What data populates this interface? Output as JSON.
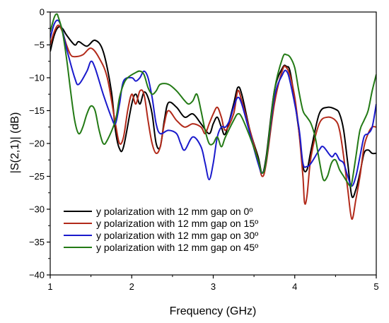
{
  "chart_data": {
    "type": "line",
    "title": "",
    "xlabel": "Frequency (GHz)",
    "ylabel": "|S(2,1)| (dB)",
    "xlim": [
      1,
      5
    ],
    "ylim": [
      -40,
      0
    ],
    "xticks": [
      1,
      2,
      3,
      4,
      5
    ],
    "yticks": [
      0,
      -5,
      -10,
      -15,
      -20,
      -25,
      -30,
      -35,
      -40
    ],
    "grid": false,
    "legend_position": "bottom-left",
    "series": [
      {
        "name": "y polarization with 12 mm gap on 0º",
        "color": "#000000",
        "points": [
          [
            1.0,
            -6.0
          ],
          [
            1.05,
            -3.5
          ],
          [
            1.1,
            -2.3
          ],
          [
            1.15,
            -2.5
          ],
          [
            1.2,
            -3.5
          ],
          [
            1.3,
            -5.0
          ],
          [
            1.35,
            -4.5
          ],
          [
            1.45,
            -5.2
          ],
          [
            1.55,
            -4.3
          ],
          [
            1.65,
            -6.0
          ],
          [
            1.75,
            -12.0
          ],
          [
            1.8,
            -18.0
          ],
          [
            1.85,
            -20.8
          ],
          [
            1.9,
            -20.5
          ],
          [
            2.0,
            -14.0
          ],
          [
            2.05,
            -12.5
          ],
          [
            2.1,
            -14.0
          ],
          [
            2.15,
            -12.2
          ],
          [
            2.2,
            -13.0
          ],
          [
            2.25,
            -15.5
          ],
          [
            2.3,
            -20.0
          ],
          [
            2.35,
            -20.5
          ],
          [
            2.4,
            -16.5
          ],
          [
            2.45,
            -13.8
          ],
          [
            2.55,
            -14.5
          ],
          [
            2.65,
            -16.0
          ],
          [
            2.75,
            -15.5
          ],
          [
            2.85,
            -17.0
          ],
          [
            2.95,
            -18.5
          ],
          [
            3.0,
            -17.0
          ],
          [
            3.05,
            -16.0
          ],
          [
            3.1,
            -17.5
          ],
          [
            3.15,
            -18.5
          ],
          [
            3.25,
            -14.0
          ],
          [
            3.3,
            -11.5
          ],
          [
            3.35,
            -12.5
          ],
          [
            3.45,
            -18.0
          ],
          [
            3.55,
            -22.0
          ],
          [
            3.6,
            -24.5
          ],
          [
            3.65,
            -22.0
          ],
          [
            3.75,
            -12.0
          ],
          [
            3.85,
            -8.5
          ],
          [
            3.9,
            -8.3
          ],
          [
            3.95,
            -9.5
          ],
          [
            4.05,
            -18.0
          ],
          [
            4.1,
            -23.5
          ],
          [
            4.15,
            -24.0
          ],
          [
            4.2,
            -21.0
          ],
          [
            4.3,
            -15.5
          ],
          [
            4.4,
            -14.5
          ],
          [
            4.5,
            -14.8
          ],
          [
            4.55,
            -15.5
          ],
          [
            4.6,
            -18.0
          ],
          [
            4.65,
            -23.0
          ],
          [
            4.7,
            -28.0
          ],
          [
            4.75,
            -27.0
          ],
          [
            4.8,
            -24.5
          ],
          [
            4.85,
            -21.5
          ],
          [
            4.9,
            -21.0
          ],
          [
            4.95,
            -21.5
          ],
          [
            5.0,
            -21.5
          ]
        ]
      },
      {
        "name": "y polarization with 12 mm gap on 15º",
        "color": "#b22a1a",
        "points": [
          [
            1.0,
            -5.0
          ],
          [
            1.05,
            -3.0
          ],
          [
            1.1,
            -2.0
          ],
          [
            1.15,
            -3.0
          ],
          [
            1.2,
            -5.0
          ],
          [
            1.25,
            -6.5
          ],
          [
            1.3,
            -6.8
          ],
          [
            1.4,
            -6.5
          ],
          [
            1.5,
            -5.5
          ],
          [
            1.6,
            -7.0
          ],
          [
            1.7,
            -10.0
          ],
          [
            1.8,
            -17.0
          ],
          [
            1.85,
            -20.0
          ],
          [
            1.9,
            -19.0
          ],
          [
            1.95,
            -15.0
          ],
          [
            2.0,
            -12.5
          ],
          [
            2.05,
            -14.0
          ],
          [
            2.1,
            -12.0
          ],
          [
            2.15,
            -12.5
          ],
          [
            2.2,
            -16.5
          ],
          [
            2.25,
            -20.0
          ],
          [
            2.3,
            -21.5
          ],
          [
            2.35,
            -20.5
          ],
          [
            2.4,
            -17.0
          ],
          [
            2.45,
            -15.0
          ],
          [
            2.55,
            -16.5
          ],
          [
            2.65,
            -17.5
          ],
          [
            2.75,
            -17.0
          ],
          [
            2.85,
            -17.5
          ],
          [
            2.9,
            -18.5
          ],
          [
            2.95,
            -17.0
          ],
          [
            3.0,
            -15.5
          ],
          [
            3.05,
            -14.5
          ],
          [
            3.1,
            -16.0
          ],
          [
            3.15,
            -18.0
          ],
          [
            3.25,
            -15.5
          ],
          [
            3.3,
            -12.0
          ],
          [
            3.35,
            -13.5
          ],
          [
            3.45,
            -18.0
          ],
          [
            3.55,
            -22.5
          ],
          [
            3.6,
            -25.0
          ],
          [
            3.65,
            -23.0
          ],
          [
            3.75,
            -14.0
          ],
          [
            3.85,
            -8.8
          ],
          [
            3.9,
            -8.5
          ],
          [
            3.95,
            -10.0
          ],
          [
            4.0,
            -13.0
          ],
          [
            4.05,
            -18.0
          ],
          [
            4.1,
            -25.0
          ],
          [
            4.12,
            -29.0
          ],
          [
            4.15,
            -28.0
          ],
          [
            4.2,
            -22.0
          ],
          [
            4.3,
            -17.0
          ],
          [
            4.4,
            -16.0
          ],
          [
            4.5,
            -16.5
          ],
          [
            4.55,
            -18.0
          ],
          [
            4.6,
            -22.0
          ],
          [
            4.65,
            -27.0
          ],
          [
            4.7,
            -31.5
          ],
          [
            4.75,
            -28.5
          ],
          [
            4.8,
            -25.0
          ],
          [
            4.85,
            -20.5
          ],
          [
            4.9,
            -18.5
          ],
          [
            4.95,
            -17.5
          ],
          [
            5.0,
            -17.5
          ]
        ]
      },
      {
        "name": "y polarization with 12 mm gap on 30º",
        "color": "#1a1acc",
        "points": [
          [
            1.0,
            -4.0
          ],
          [
            1.05,
            -1.8
          ],
          [
            1.1,
            -1.3
          ],
          [
            1.15,
            -2.8
          ],
          [
            1.2,
            -5.5
          ],
          [
            1.3,
            -10.0
          ],
          [
            1.35,
            -11.0
          ],
          [
            1.45,
            -9.0
          ],
          [
            1.5,
            -7.5
          ],
          [
            1.55,
            -8.5
          ],
          [
            1.65,
            -12.5
          ],
          [
            1.75,
            -16.0
          ],
          [
            1.8,
            -17.0
          ],
          [
            1.85,
            -14.0
          ],
          [
            1.9,
            -10.5
          ],
          [
            2.0,
            -10.0
          ],
          [
            2.05,
            -10.5
          ],
          [
            2.1,
            -10.0
          ],
          [
            2.15,
            -9.0
          ],
          [
            2.2,
            -10.0
          ],
          [
            2.25,
            -13.0
          ],
          [
            2.3,
            -17.0
          ],
          [
            2.35,
            -18.5
          ],
          [
            2.45,
            -18.0
          ],
          [
            2.55,
            -18.5
          ],
          [
            2.6,
            -20.0
          ],
          [
            2.65,
            -21.0
          ],
          [
            2.75,
            -19.0
          ],
          [
            2.85,
            -20.5
          ],
          [
            2.9,
            -23.0
          ],
          [
            2.95,
            -25.5
          ],
          [
            3.0,
            -23.0
          ],
          [
            3.05,
            -19.0
          ],
          [
            3.1,
            -17.5
          ],
          [
            3.15,
            -17.5
          ],
          [
            3.2,
            -16.5
          ],
          [
            3.25,
            -14.5
          ],
          [
            3.3,
            -13.0
          ],
          [
            3.35,
            -14.0
          ],
          [
            3.45,
            -18.5
          ],
          [
            3.55,
            -23.0
          ],
          [
            3.6,
            -24.5
          ],
          [
            3.65,
            -22.5
          ],
          [
            3.75,
            -13.0
          ],
          [
            3.85,
            -9.5
          ],
          [
            3.9,
            -9.0
          ],
          [
            3.95,
            -11.0
          ],
          [
            4.05,
            -17.5
          ],
          [
            4.1,
            -23.0
          ],
          [
            4.15,
            -23.5
          ],
          [
            4.2,
            -23.0
          ],
          [
            4.3,
            -21.0
          ],
          [
            4.35,
            -20.5
          ],
          [
            4.45,
            -22.0
          ],
          [
            4.5,
            -21.5
          ],
          [
            4.55,
            -22.5
          ],
          [
            4.6,
            -23.0
          ],
          [
            4.65,
            -25.0
          ],
          [
            4.7,
            -26.5
          ],
          [
            4.75,
            -25.0
          ],
          [
            4.8,
            -22.0
          ],
          [
            4.85,
            -19.0
          ],
          [
            4.9,
            -18.5
          ],
          [
            4.95,
            -17.5
          ],
          [
            5.0,
            -14.0
          ]
        ]
      },
      {
        "name": "y polarization with 12 mm gap on 45º",
        "color": "#237a15",
        "points": [
          [
            1.0,
            -3.0
          ],
          [
            1.05,
            -0.8
          ],
          [
            1.08,
            -0.3
          ],
          [
            1.1,
            -0.8
          ],
          [
            1.15,
            -3.0
          ],
          [
            1.2,
            -7.0
          ],
          [
            1.25,
            -12.0
          ],
          [
            1.3,
            -16.5
          ],
          [
            1.35,
            -18.5
          ],
          [
            1.4,
            -17.5
          ],
          [
            1.45,
            -15.5
          ],
          [
            1.5,
            -14.3
          ],
          [
            1.55,
            -15.0
          ],
          [
            1.6,
            -18.0
          ],
          [
            1.65,
            -20.0
          ],
          [
            1.7,
            -19.5
          ],
          [
            1.8,
            -16.5
          ],
          [
            1.85,
            -13.0
          ],
          [
            1.9,
            -11.0
          ],
          [
            1.95,
            -10.0
          ],
          [
            2.05,
            -9.2
          ],
          [
            2.1,
            -9.0
          ],
          [
            2.15,
            -9.5
          ],
          [
            2.2,
            -11.5
          ],
          [
            2.25,
            -12.5
          ],
          [
            2.3,
            -12.0
          ],
          [
            2.35,
            -11.0
          ],
          [
            2.45,
            -11.0
          ],
          [
            2.55,
            -12.0
          ],
          [
            2.65,
            -13.5
          ],
          [
            2.7,
            -14.0
          ],
          [
            2.75,
            -13.5
          ],
          [
            2.8,
            -12.5
          ],
          [
            2.85,
            -15.0
          ],
          [
            2.9,
            -18.0
          ],
          [
            2.95,
            -20.0
          ],
          [
            3.0,
            -20.0
          ],
          [
            3.05,
            -19.0
          ],
          [
            3.1,
            -20.5
          ],
          [
            3.15,
            -19.0
          ],
          [
            3.25,
            -16.5
          ],
          [
            3.3,
            -15.5
          ],
          [
            3.35,
            -16.0
          ],
          [
            3.45,
            -19.0
          ],
          [
            3.55,
            -22.5
          ],
          [
            3.6,
            -24.5
          ],
          [
            3.65,
            -22.5
          ],
          [
            3.75,
            -12.0
          ],
          [
            3.85,
            -7.0
          ],
          [
            3.9,
            -6.5
          ],
          [
            3.95,
            -7.0
          ],
          [
            4.0,
            -8.5
          ],
          [
            4.05,
            -12.0
          ],
          [
            4.1,
            -15.0
          ],
          [
            4.15,
            -16.0
          ],
          [
            4.2,
            -17.0
          ],
          [
            4.25,
            -19.0
          ],
          [
            4.3,
            -22.5
          ],
          [
            4.35,
            -25.5
          ],
          [
            4.4,
            -25.0
          ],
          [
            4.45,
            -23.0
          ],
          [
            4.5,
            -22.5
          ],
          [
            4.55,
            -24.0
          ],
          [
            4.6,
            -25.0
          ],
          [
            4.65,
            -26.0
          ],
          [
            4.68,
            -26.5
          ],
          [
            4.7,
            -26.0
          ],
          [
            4.75,
            -22.0
          ],
          [
            4.8,
            -18.0
          ],
          [
            4.85,
            -16.5
          ],
          [
            4.9,
            -15.0
          ],
          [
            4.95,
            -12.0
          ],
          [
            5.0,
            -9.5
          ]
        ]
      }
    ]
  }
}
